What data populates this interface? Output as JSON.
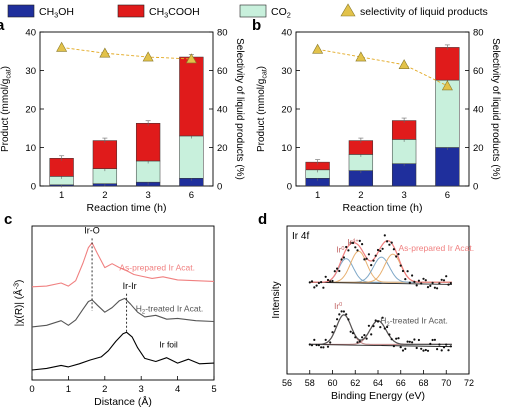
{
  "legend": {
    "items": [
      {
        "label": "CH",
        "sub": "3",
        "rest": "OH",
        "color": "#1f2f9c",
        "shape": "rect"
      },
      {
        "label": "CH",
        "sub": "3",
        "rest": "COOH",
        "color": "#e01b1b",
        "shape": "rect"
      },
      {
        "label": "CO",
        "sub": "2",
        "rest": "",
        "color": "#c8f0dc",
        "shape": "rect"
      },
      {
        "label": "selectivity of liquid products",
        "sub": "",
        "rest": "",
        "color": "#e2c24a",
        "shape": "triangle"
      }
    ]
  },
  "chart_data": [
    {
      "panel": "a",
      "type": "bar",
      "stacked": true,
      "categories": [
        "1",
        "2",
        "3",
        "6"
      ],
      "xlabel": "Reaction time (h)",
      "ylabel": "Product (mmol/g",
      "ylabel_sub": "cat",
      "ylabel_end": ")",
      "ylim": [
        0,
        40
      ],
      "yticks": [
        0,
        10,
        20,
        30,
        40
      ],
      "y2label": "Selectivity of liquid products (%)",
      "y2lim": [
        0,
        80
      ],
      "y2ticks": [
        0,
        20,
        40,
        60,
        80
      ],
      "series": [
        {
          "key": "ch3oh",
          "values": [
            0.3,
            0.6,
            1.0,
            2.0
          ],
          "color": "#1f2f9c"
        },
        {
          "key": "co2",
          "values": [
            2.2,
            3.9,
            5.5,
            11.0
          ],
          "color": "#c8f0dc"
        },
        {
          "key": "ch3cooh",
          "values": [
            4.7,
            7.3,
            9.8,
            20.5
          ],
          "color": "#e01b1b"
        }
      ],
      "selectivity": [
        72,
        69,
        67,
        66
      ],
      "grid": false
    },
    {
      "panel": "b",
      "type": "bar",
      "stacked": true,
      "categories": [
        "1",
        "2",
        "3",
        "6"
      ],
      "xlabel": "Reaction time (h)",
      "ylabel": "Product (mmol/g",
      "ylabel_sub": "cat",
      "ylabel_end": ")",
      "ylim": [
        0,
        40
      ],
      "yticks": [
        0,
        10,
        20,
        30,
        40
      ],
      "y2label": "Selectivity of liquid products (%)",
      "y2lim": [
        0,
        80
      ],
      "y2ticks": [
        0,
        20,
        40,
        60,
        80
      ],
      "series": [
        {
          "key": "ch3oh",
          "values": [
            2.0,
            4.0,
            5.8,
            10.0
          ],
          "color": "#1f2f9c"
        },
        {
          "key": "co2",
          "values": [
            2.2,
            4.2,
            6.3,
            17.5
          ],
          "color": "#c8f0dc"
        },
        {
          "key": "ch3cooh",
          "values": [
            2.0,
            3.6,
            4.9,
            8.5
          ],
          "color": "#e01b1b"
        }
      ],
      "selectivity": [
        71,
        67,
        63,
        52
      ],
      "grid": false
    },
    {
      "panel": "c",
      "type": "line",
      "xlabel": "Distance (Å)",
      "ylabel": "|χ(R)| (Å",
      "ylabel_sup": "-3",
      "ylabel_end": ")",
      "xlim": [
        0,
        5
      ],
      "xticks": [
        0,
        1,
        2,
        3,
        4,
        5
      ],
      "series": [
        {
          "key": "as-prepared",
          "name": "As-prepared Ir Acat.",
          "color": "#f08080",
          "x": [
            0.0,
            0.4,
            0.8,
            1.0,
            1.2,
            1.4,
            1.55,
            1.65,
            1.8,
            2.0,
            2.2,
            2.4,
            2.6,
            2.8,
            3.0,
            3.3,
            3.6,
            4.0,
            4.5,
            5.0
          ],
          "y": [
            0.05,
            0.1,
            0.3,
            0.1,
            0.45,
            1.6,
            2.6,
            2.9,
            2.2,
            1.3,
            1.55,
            1.3,
            1.1,
            0.85,
            0.75,
            0.6,
            0.7,
            0.5,
            0.45,
            0.4
          ]
        },
        {
          "key": "h2-treated",
          "name": "H-treated Ir Acat.",
          "color": "#555555",
          "x": [
            0.0,
            0.4,
            0.8,
            1.0,
            1.2,
            1.4,
            1.55,
            1.65,
            1.8,
            2.0,
            2.2,
            2.4,
            2.55,
            2.7,
            2.9,
            3.1,
            3.4,
            3.7,
            4.0,
            4.5,
            5.0
          ],
          "y": [
            0.05,
            0.15,
            0.45,
            0.15,
            0.5,
            1.2,
            1.7,
            1.8,
            1.45,
            1.0,
            1.3,
            1.75,
            1.9,
            1.55,
            1.0,
            0.7,
            0.8,
            0.55,
            0.6,
            0.45,
            0.4
          ]
        },
        {
          "key": "ir-foil",
          "name": "Ir foil",
          "color": "#000000",
          "x": [
            0.0,
            0.4,
            0.8,
            1.0,
            1.3,
            1.6,
            1.9,
            2.1,
            2.3,
            2.5,
            2.6,
            2.75,
            2.9,
            3.1,
            3.4,
            3.7,
            4.0,
            4.3,
            4.6,
            5.0
          ],
          "y": [
            0.05,
            0.15,
            0.35,
            0.25,
            0.45,
            0.7,
            0.9,
            1.3,
            1.9,
            2.4,
            2.5,
            2.2,
            1.5,
            0.8,
            0.6,
            0.85,
            0.5,
            0.75,
            0.45,
            0.5
          ]
        }
      ],
      "offsets": [
        6.0,
        3.4,
        0.6
      ],
      "ylim": [
        0,
        10
      ],
      "annotations": [
        {
          "text": "Ir-O",
          "x": 1.65
        },
        {
          "text": "Ir-Ir",
          "x": 2.6
        }
      ],
      "grid": false
    },
    {
      "panel": "d",
      "type": "scatter",
      "title": "Ir 4f",
      "xlabel": "Binding Energy (eV)",
      "ylabel": "Intensity",
      "xlim": [
        56,
        72
      ],
      "xticks": [
        56,
        58,
        60,
        62,
        64,
        66,
        68,
        70,
        72
      ],
      "ylim": [
        0,
        10
      ],
      "curves": [
        {
          "key": "as-prepared",
          "name": "As-prepared Ir Acat.",
          "color": "#f08080",
          "baseline": 6.2,
          "peaks": [
            {
              "center": 61.2,
              "height": 1.6,
              "width": 0.9,
              "color": "#7fa8c8",
              "label": "Ir",
              "sup": "0"
            },
            {
              "center": 62.3,
              "height": 2.1,
              "width": 1.0,
              "color": "#e8b070",
              "label": "Ir",
              "sup": "4+"
            },
            {
              "center": 64.3,
              "height": 1.7,
              "width": 1.0,
              "color": "#7fa8c8",
              "label": "",
              "sup": ""
            },
            {
              "center": 65.3,
              "height": 1.9,
              "width": 1.0,
              "color": "#e8b070",
              "label": "",
              "sup": ""
            }
          ]
        },
        {
          "key": "h2-treated",
          "name": "H-treated Ir Acat.",
          "color": "#555555",
          "baseline": 2.0,
          "peaks": [
            {
              "center": 61.0,
              "height": 2.0,
              "width": 0.9,
              "color": "#c08080",
              "label": "Ir",
              "sup": "0"
            },
            {
              "center": 64.0,
              "height": 1.6,
              "width": 1.0,
              "color": "#c08080",
              "label": "",
              "sup": ""
            }
          ]
        }
      ],
      "grid": false
    }
  ]
}
